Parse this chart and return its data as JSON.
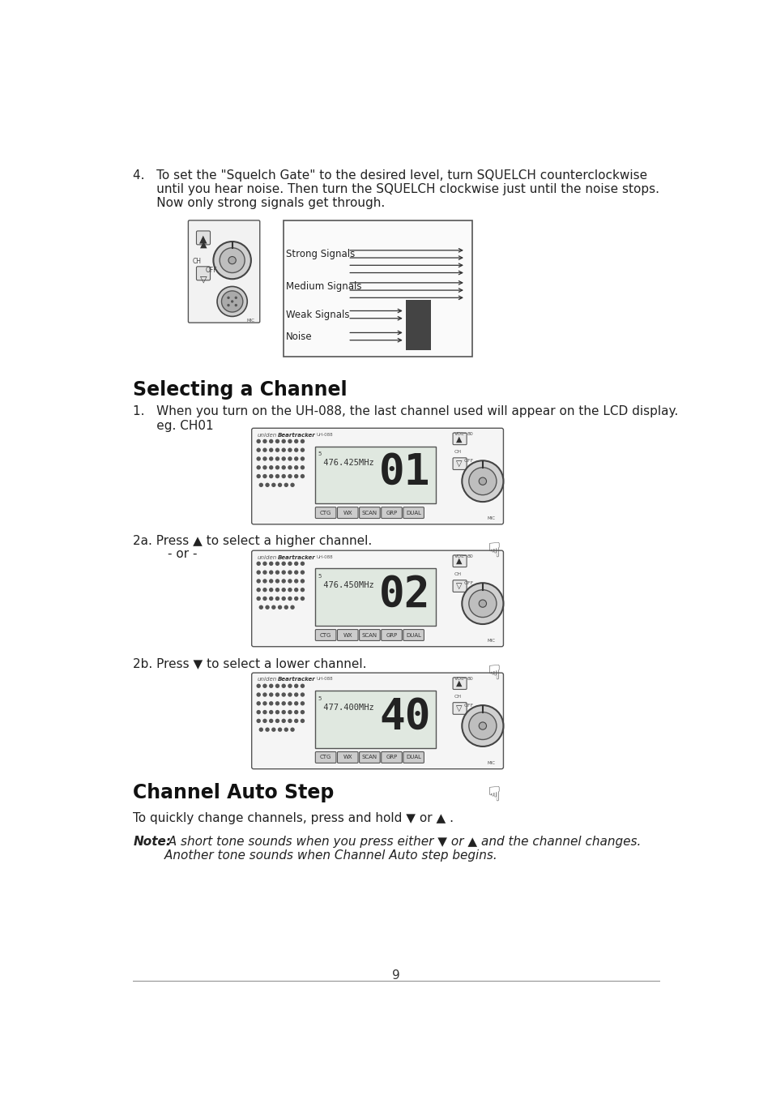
{
  "bg_color": "#ffffff",
  "page_number": "9",
  "item4_text_line1": "4.   To set the \"Squelch Gate\" to the desired level, turn SQUELCH counterclockwise",
  "item4_text_line2": "      until you hear noise. Then turn the SQUELCH clockwise just until the noise stops.",
  "item4_text_line3": "      Now only strong signals get through.",
  "section_title": "Selecting a Channel",
  "item1_line1": "1.   When you turn on the UH-088, the last channel used will appear on the LCD display.",
  "item1_line2": "      eg. CH01",
  "item2a_line1": "2a. Press ▲ to select a higher channel.",
  "item2a_line2": "- or -",
  "item2b_line1": "2b. Press ▼ to select a lower channel.",
  "section2_title": "Channel Auto Step",
  "auto_step_text": "To quickly change channels, press and hold ▼ or ▲ .",
  "note_bold": "Note:",
  "note_italic1": "  A short tone sounds when you press either ▼ or ▲ and the channel changes.",
  "note_italic2": "        Another tone sounds when Channel Auto step begins.",
  "signal_labels": [
    "Strong Signals",
    "Medium Signals",
    "Weak Signals",
    "Noise"
  ],
  "radio_freq1": " 476.425MHz",
  "radio_ch1": "01",
  "radio_freq2": " 476.450MHz",
  "radio_ch2": "02",
  "radio_freq3": " 477.400MHz",
  "radio_ch3": "40",
  "text_color": "#222222",
  "title_color": "#111111",
  "line_color": "#999999"
}
